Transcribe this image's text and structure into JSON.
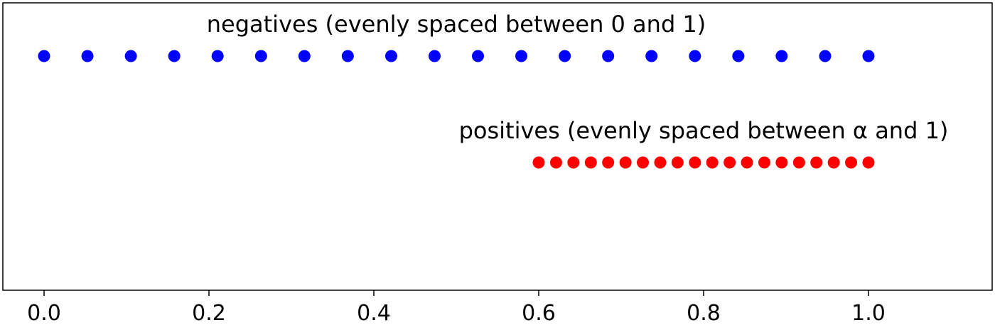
{
  "chart_data": {
    "type": "scatter",
    "xlim": [
      -0.05,
      1.15
    ],
    "ylim": [
      -0.2,
      2.5
    ],
    "grid": false,
    "x_ticks": [
      "0.0",
      "0.2",
      "0.4",
      "0.6",
      "0.8",
      "1.0"
    ],
    "x_tick_values": [
      0.0,
      0.2,
      0.4,
      0.6,
      0.8,
      1.0
    ],
    "series": [
      {
        "color": "#0000ff",
        "y": 2,
        "x": [
          0.0,
          0.0526,
          0.1053,
          0.1579,
          0.2105,
          0.2632,
          0.3158,
          0.3684,
          0.4211,
          0.4737,
          0.5263,
          0.5789,
          0.6316,
          0.6842,
          0.7368,
          0.7895,
          0.8421,
          0.8947,
          0.9474,
          1.0
        ]
      },
      {
        "color": "#ff0000",
        "y": 1,
        "x": [
          0.6,
          0.6211,
          0.6421,
          0.6632,
          0.6842,
          0.7053,
          0.7263,
          0.7474,
          0.7684,
          0.7895,
          0.8105,
          0.8316,
          0.8526,
          0.8737,
          0.8947,
          0.9158,
          0.9368,
          0.9579,
          0.9789,
          1.0
        ]
      }
    ],
    "annotations": [
      {
        "text": "negatives (evenly spaced between 0 and 1)",
        "x": 0.5,
        "y": 2.3
      },
      {
        "text": "positives (evenly spaced between α and 1)",
        "x": 0.8,
        "y": 1.3
      }
    ]
  }
}
